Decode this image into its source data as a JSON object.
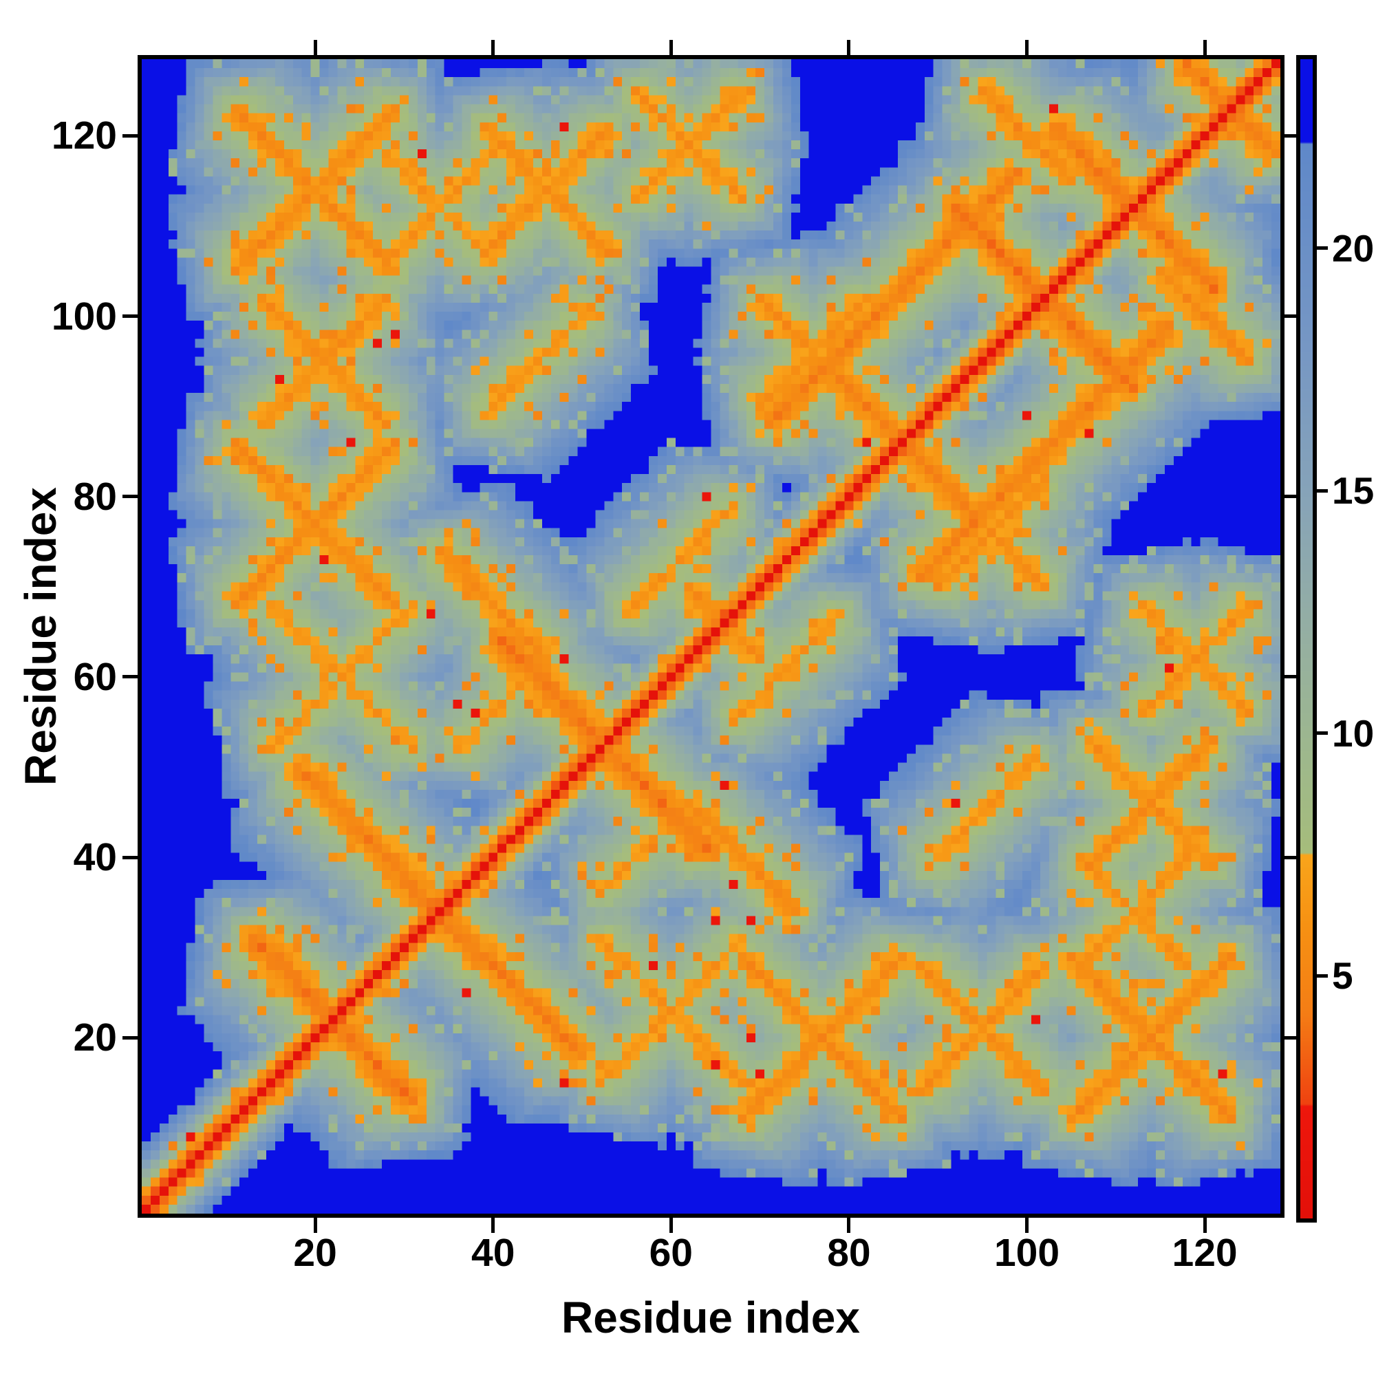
{
  "figure": {
    "background": "#ffffff"
  },
  "chart_data": {
    "type": "heatmap",
    "title": "",
    "xlabel": "Residue index",
    "ylabel": "Residue index",
    "x_ticks": [
      20,
      40,
      60,
      80,
      100,
      120
    ],
    "y_ticks": [
      20,
      40,
      60,
      80,
      100,
      120
    ],
    "n_residues": 128,
    "grid": false,
    "legend_position": "right-colorbar",
    "colorbar": {
      "ticks": [
        5,
        10,
        15,
        20
      ],
      "vmin": 0,
      "vmax": 23.9
    },
    "colors": {
      "background_blue": "#0a10e6",
      "steel_blue": "#7697c4",
      "sage_green": "#a6bd7b",
      "orange": "#f69113",
      "red": "#ee170c",
      "frame": "#000000"
    },
    "colormap_segments": [
      [
        23.9,
        22.2,
        "#0a10e6",
        "#0a10e6"
      ],
      [
        22.2,
        18.0,
        "#5f88c9",
        "#7697c4"
      ],
      [
        18.0,
        15.0,
        "#7697c4",
        "#86a3b9"
      ],
      [
        15.0,
        12.0,
        "#86a3b9",
        "#95afa2"
      ],
      [
        12.0,
        9.5,
        "#95afa2",
        "#9eb88c"
      ],
      [
        9.5,
        7.5,
        "#9eb88c",
        "#a6bd7b"
      ],
      [
        7.5,
        6.0,
        "#f9a51b",
        "#f69113"
      ],
      [
        6.0,
        4.2,
        "#f69113",
        "#f47d15"
      ],
      [
        4.2,
        2.3,
        "#f47d15",
        "#ef4110"
      ],
      [
        2.3,
        0.0,
        "#ee170c",
        "#e31009"
      ]
    ],
    "matrix_model": {
      "diagonal": {
        "core": 0.5,
        "slope": 3.05
      },
      "diagonal_crosses": [
        {
          "c": 22,
          "L": 9,
          "core": 4.0
        },
        {
          "c": 33.5,
          "L": 5,
          "core": 5.0
        },
        {
          "c": 52.5,
          "L": 12,
          "core": 4.0
        },
        {
          "c": 66,
          "L": 4,
          "core": 5.5
        },
        {
          "c": 86,
          "L": 8,
          "core": 4.5
        },
        {
          "c": 102,
          "L": 10,
          "core": 4.0
        },
        {
          "c": 112,
          "L": 9,
          "core": 4.2
        },
        {
          "c": 123,
          "L": 5,
          "core": 4.5
        }
      ],
      "contacts": [
        {
          "i": 20,
          "j": 77,
          "t": "x",
          "L": 9,
          "core": 5.2
        },
        {
          "i": 23,
          "j": 60,
          "t": "x",
          "L": 8,
          "core": 6.0
        },
        {
          "i": 26,
          "j": 42,
          "t": "a",
          "L": 8,
          "core": 4.6
        },
        {
          "i": 21,
          "j": 95,
          "t": "x",
          "L": 7,
          "core": 5.5
        },
        {
          "i": 20,
          "j": 114,
          "t": "x",
          "L": 9,
          "core": 5.2
        },
        {
          "i": 34,
          "j": 112,
          "t": "x",
          "L": 6,
          "core": 6.0
        },
        {
          "i": 46,
          "j": 114,
          "t": "x",
          "L": 7,
          "core": 5.5
        },
        {
          "i": 62,
          "j": 119,
          "t": "x",
          "L": 6,
          "core": 5.8
        },
        {
          "i": 45,
          "j": 95,
          "t": "p",
          "L": 6,
          "core": 6.0
        },
        {
          "i": 40,
          "j": 68,
          "t": "a",
          "L": 6,
          "core": 5.2
        },
        {
          "i": 41,
          "j": 57,
          "t": "p",
          "L": 5,
          "core": 6.2
        },
        {
          "i": 61,
          "j": 73,
          "t": "p",
          "L": 6,
          "core": 6.0
        },
        {
          "i": 76,
          "j": 96,
          "t": "x",
          "L": 6,
          "core": 5.5
        },
        {
          "i": 85,
          "j": 102,
          "t": "p",
          "L": 14,
          "core": 4.6
        },
        {
          "i": 100,
          "j": 120,
          "t": "a",
          "L": 5,
          "core": 5.2
        }
      ],
      "noise": {
        "jitter": 1.5,
        "speckle_orange_p": 0.085,
        "speckle_red_p": 0.007,
        "fringe_p": 0.13
      }
    }
  }
}
